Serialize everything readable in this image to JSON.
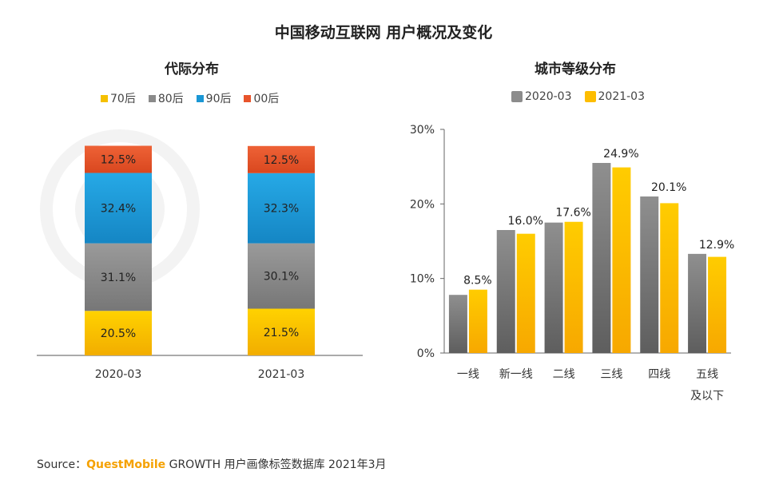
{
  "title": "中国移动互联网 用户概况及变化",
  "source": {
    "prefix": "Source：",
    "brand": "QuestMobile",
    "suffix": " GROWTH 用户画像标签数据库 2021年3月"
  },
  "colors": {
    "c70": "#f5c000",
    "c80": "#8a8a8a",
    "c90": "#1a97d5",
    "c00": "#e8542b",
    "gray_series": "#8c8c8c",
    "yellow_series": "#fdbd00"
  },
  "chart_data": [
    {
      "type": "bar",
      "stacked": true,
      "title": "代际分布",
      "categories": [
        "2020-03",
        "2021-03"
      ],
      "series": [
        {
          "name": "70后",
          "values": [
            20.5,
            21.5
          ],
          "labels": [
            "20.5%",
            "21.5%"
          ]
        },
        {
          "name": "80后",
          "values": [
            31.1,
            30.1
          ],
          "labels": [
            "31.1%",
            "30.1%"
          ]
        },
        {
          "name": "90后",
          "values": [
            32.4,
            32.3
          ],
          "labels": [
            "32.4%",
            "32.3%"
          ]
        },
        {
          "name": "00后",
          "values": [
            12.5,
            12.5
          ],
          "labels": [
            "12.5%",
            "12.5%"
          ]
        }
      ],
      "ylim": [
        0,
        100
      ],
      "legend": "top"
    },
    {
      "type": "bar",
      "title": "城市等级分布",
      "categories": [
        "一线",
        "新一线",
        "二线",
        "三线",
        "四线",
        "五线\n及以下"
      ],
      "series": [
        {
          "name": "2020-03",
          "values": [
            7.8,
            16.5,
            17.5,
            25.5,
            21.0,
            13.3
          ]
        },
        {
          "name": "2021-03",
          "values": [
            8.5,
            16.0,
            17.6,
            24.9,
            20.1,
            12.9
          ],
          "labels": [
            "8.5%",
            "16.0%",
            "17.6%",
            "24.9%",
            "20.1%",
            "12.9%"
          ]
        }
      ],
      "yticks": [
        "0%",
        "10%",
        "20%",
        "30%"
      ],
      "ylim": [
        0,
        30
      ],
      "grid": false,
      "legend": "top"
    }
  ]
}
